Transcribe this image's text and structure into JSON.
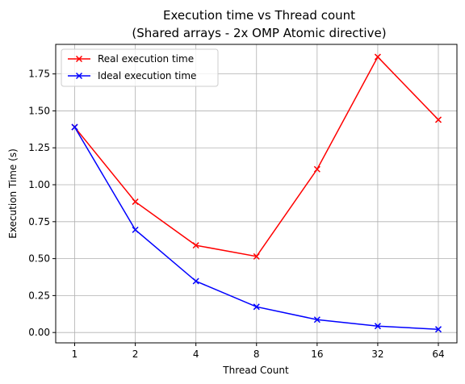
{
  "chart_data": {
    "type": "line",
    "title": "Execution time vs Thread count",
    "subtitle": "(Shared arrays - 2x OMP Atomic directive)",
    "xlabel": "Thread Count",
    "ylabel": "Execution Time (s)",
    "categories": [
      "1",
      "2",
      "4",
      "8",
      "16",
      "32",
      "64"
    ],
    "ylim": [
      -0.07,
      1.95
    ],
    "yticks": [
      "0.00",
      "0.25",
      "0.50",
      "0.75",
      "1.00",
      "1.25",
      "1.50",
      "1.75"
    ],
    "grid": true,
    "legend_position": "top-left",
    "series": [
      {
        "name": "Real execution time",
        "color": "#ff0000",
        "marker": "x",
        "values": [
          1.39,
          0.885,
          0.59,
          0.515,
          1.105,
          1.865,
          1.44
        ]
      },
      {
        "name": "Ideal execution time",
        "color": "#0000ff",
        "marker": "x",
        "values": [
          1.39,
          0.695,
          0.3475,
          0.174,
          0.087,
          0.0435,
          0.0217
        ]
      }
    ]
  }
}
